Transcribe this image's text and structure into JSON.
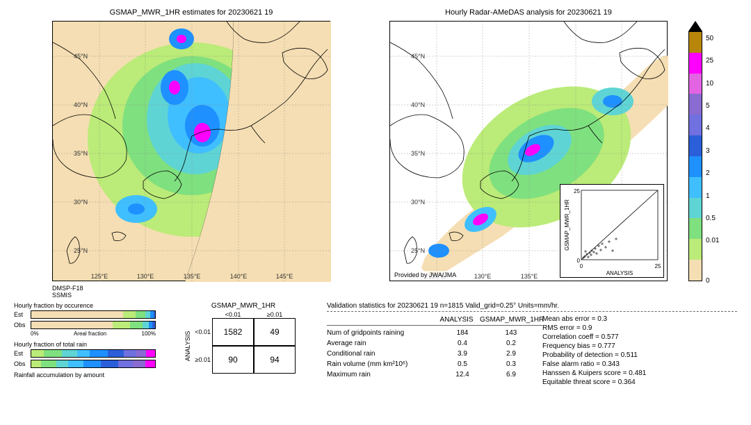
{
  "titles": {
    "left": "GSMAP_MWR_1HR estimates for 20230621 19",
    "right": "Hourly Radar-AMeDAS analysis for 20230621 19"
  },
  "source_label": "DMSP-F18\nSSMIS",
  "provider": "Provided by JWA/JMA",
  "map": {
    "lon_ticks": [
      "125°E",
      "130°E",
      "135°E",
      "140°E",
      "145°E"
    ],
    "lat_ticks": [
      "25°N",
      "30°N",
      "35°N",
      "40°N",
      "45°N"
    ],
    "bg_color": "#f5deb3"
  },
  "colorbar": {
    "colors": [
      "#b8860b",
      "#ff00ff",
      "#e364e3",
      "#8a6bd1",
      "#7070e0",
      "#2b5fd9",
      "#1e90ff",
      "#3fbfff",
      "#5fd4d4",
      "#7fe07f",
      "#bbeb78",
      "#f5deb3"
    ],
    "labels": [
      "50",
      "25",
      "10",
      "5",
      "4",
      "3",
      "2",
      "1",
      "0.5",
      "0.01",
      "0"
    ],
    "positions": [
      3,
      12,
      21,
      30,
      39,
      48,
      57,
      66,
      75,
      84,
      100
    ]
  },
  "scatter": {
    "xlabel": "ANALYSIS",
    "ylabel": "GSMAP_MWR_1HR",
    "lim": [
      0,
      25
    ],
    "tick": 25
  },
  "hbar": {
    "title1": "Hourly fraction by occurence",
    "title2": "Hourly fraction of total rain",
    "title3": "Rainfall accumulation by amount",
    "rows1": [
      {
        "label": "Est",
        "segs": [
          {
            "c": "#f5deb3",
            "w": 74
          },
          {
            "c": "#bbeb78",
            "w": 10
          },
          {
            "c": "#7fe07f",
            "w": 8
          },
          {
            "c": "#5fd4d4",
            "w": 4
          },
          {
            "c": "#1e90ff",
            "w": 3
          },
          {
            "c": "#2b5fd9",
            "w": 1
          }
        ]
      },
      {
        "label": "Obs",
        "segs": [
          {
            "c": "#f5deb3",
            "w": 66
          },
          {
            "c": "#bbeb78",
            "w": 14
          },
          {
            "c": "#7fe07f",
            "w": 10
          },
          {
            "c": "#5fd4d4",
            "w": 5
          },
          {
            "c": "#1e90ff",
            "w": 3
          },
          {
            "c": "#2b5fd9",
            "w": 2
          }
        ]
      }
    ],
    "rows2": [
      {
        "label": "Est",
        "segs": [
          {
            "c": "#bbeb78",
            "w": 10
          },
          {
            "c": "#7fe07f",
            "w": 15
          },
          {
            "c": "#5fd4d4",
            "w": 12
          },
          {
            "c": "#3fbfff",
            "w": 10
          },
          {
            "c": "#1e90ff",
            "w": 15
          },
          {
            "c": "#2b5fd9",
            "w": 13
          },
          {
            "c": "#7070e0",
            "w": 10
          },
          {
            "c": "#8a6bd1",
            "w": 8
          },
          {
            "c": "#ff00ff",
            "w": 7
          }
        ]
      },
      {
        "label": "Obs",
        "segs": [
          {
            "c": "#bbeb78",
            "w": 8
          },
          {
            "c": "#7fe07f",
            "w": 12
          },
          {
            "c": "#5fd4d4",
            "w": 10
          },
          {
            "c": "#3fbfff",
            "w": 12
          },
          {
            "c": "#1e90ff",
            "w": 14
          },
          {
            "c": "#2b5fd9",
            "w": 14
          },
          {
            "c": "#7070e0",
            "w": 12
          },
          {
            "c": "#8a6bd1",
            "w": 10
          },
          {
            "c": "#ff00ff",
            "w": 8
          }
        ]
      }
    ],
    "axis_labels": [
      "0%",
      "Areal fraction",
      "100%"
    ]
  },
  "confusion": {
    "title": "GSMAP_MWR_1HR",
    "col_headers": [
      "<0.01",
      "≥0.01"
    ],
    "row_headers": [
      "<0.01",
      "≥0.01"
    ],
    "ylabel": "ANALYSIS",
    "cells": [
      [
        "1582",
        "49"
      ],
      [
        "90",
        "94"
      ]
    ]
  },
  "stats": {
    "title": "Validation statistics for 20230621 19  n=1815 Valid_grid=0.25°  Units=mm/hr.",
    "col_hdr1": "ANALYSIS",
    "col_hdr2": "GSMAP_MWR_1HR",
    "rows_left": [
      {
        "k": "Num of gridpoints raining",
        "v1": "184",
        "v2": "143"
      },
      {
        "k": "Average rain",
        "v1": "0.4",
        "v2": "0.2"
      },
      {
        "k": "Conditional rain",
        "v1": "3.9",
        "v2": "2.9"
      },
      {
        "k": "Rain volume (mm km²10⁶)",
        "v1": "0.5",
        "v2": "0.3"
      },
      {
        "k": "Maximum rain",
        "v1": "12.4",
        "v2": "6.9"
      }
    ],
    "rows_right": [
      {
        "k": "Mean abs error =",
        "v": "0.3"
      },
      {
        "k": "RMS error =",
        "v": "0.9"
      },
      {
        "k": "Correlation coeff =",
        "v": "0.577"
      },
      {
        "k": "Frequency bias =",
        "v": "0.777"
      },
      {
        "k": "Probability of detection =",
        "v": "0.511"
      },
      {
        "k": "False alarm ratio =",
        "v": "0.343"
      },
      {
        "k": "Hanssen & Kuipers score =",
        "v": "0.481"
      },
      {
        "k": "Equitable threat score =",
        "v": "0.364"
      }
    ]
  }
}
